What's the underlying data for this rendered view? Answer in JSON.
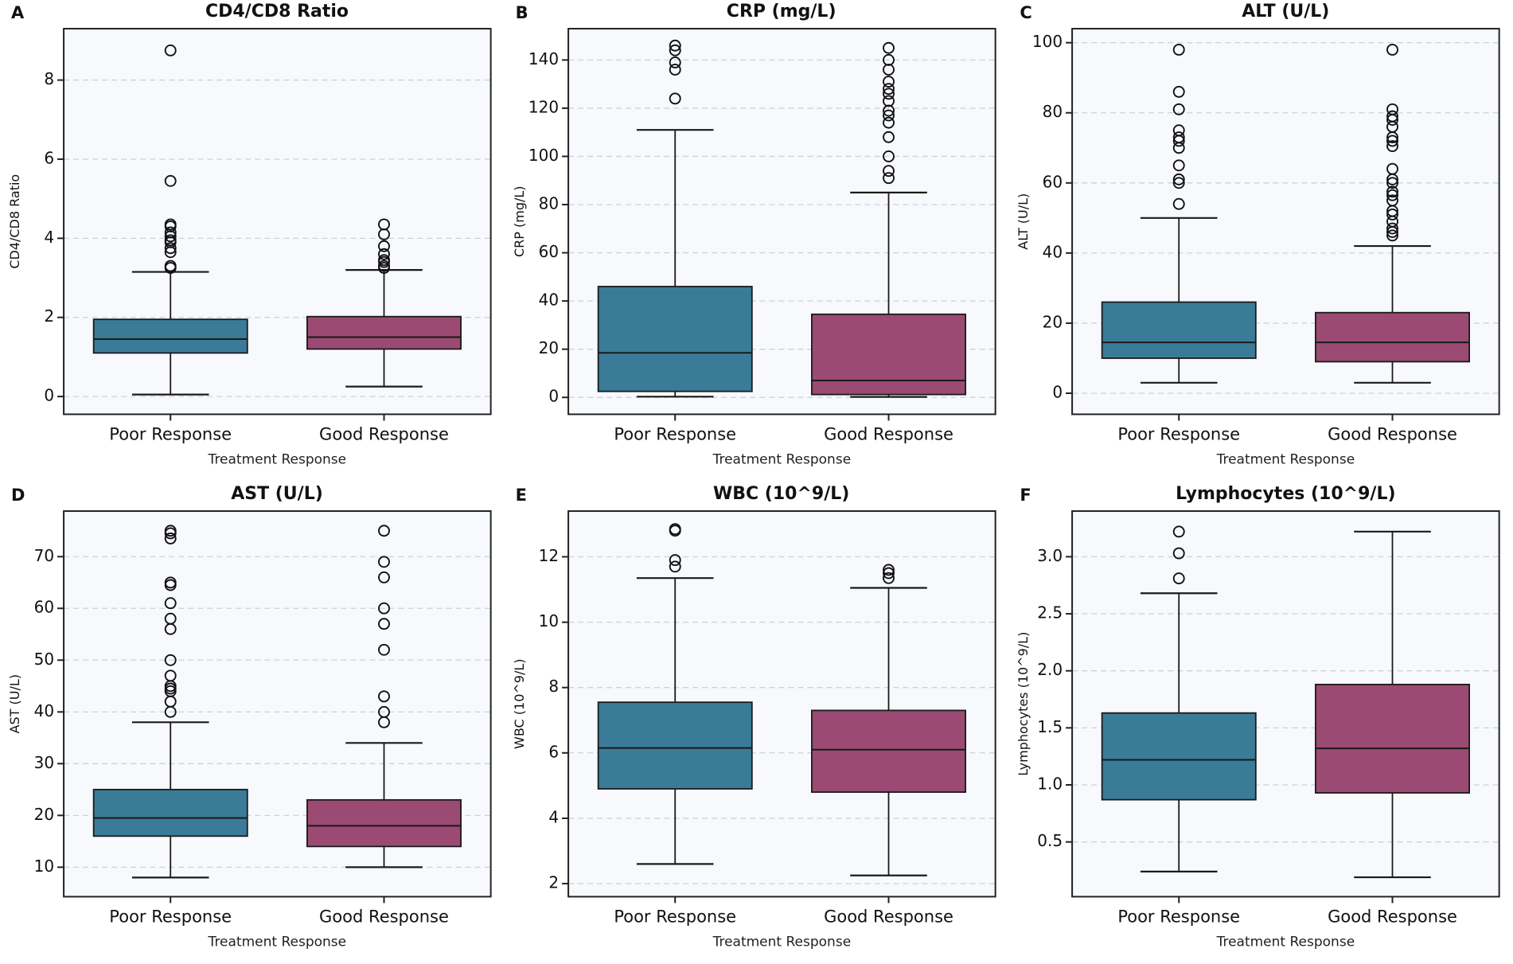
{
  "figure": {
    "xlabel": "Treatment Response",
    "categories": [
      "Poor Response",
      "Good Response"
    ],
    "colors": {
      "poor_fill": "#3a7c98",
      "good_fill": "#9b4a73",
      "box_edge": "#1a1a1a",
      "median": "#1a1a1a",
      "whisker": "#1a1a1a",
      "outlier_stroke": "#111111",
      "grid": "#cdd2d8",
      "plot_bg": "#f7f9fc",
      "spine": "#222222",
      "page_bg": "#ffffff"
    }
  },
  "chart_data": [
    {
      "panel": "A",
      "type": "box",
      "title": "CD4/CD8 Ratio",
      "ylabel": "CD4/CD8 Ratio",
      "xlabel": "Treatment Response",
      "categories": [
        "Poor Response",
        "Good Response"
      ],
      "ytick_vals": [
        0,
        2,
        4,
        6,
        8
      ],
      "ytick_labels": [
        "0",
        "2",
        "4",
        "6",
        "8"
      ],
      "ylim": [
        -0.45,
        9.3
      ],
      "grid": true,
      "series": [
        {
          "name": "Poor Response",
          "whislo": 0.05,
          "q1": 1.1,
          "med": 1.45,
          "q3": 1.95,
          "whishi": 3.15,
          "outliers": [
            3.25,
            3.3,
            3.65,
            3.75,
            3.9,
            3.95,
            4.05,
            4.15,
            4.3,
            4.35,
            5.45,
            8.75
          ]
        },
        {
          "name": "Good Response",
          "whislo": 0.25,
          "q1": 1.2,
          "med": 1.5,
          "q3": 2.02,
          "whishi": 3.2,
          "outliers": [
            3.25,
            3.3,
            3.4,
            3.45,
            3.6,
            3.8,
            4.1,
            4.35
          ]
        }
      ]
    },
    {
      "panel": "B",
      "type": "box",
      "title": "CRP (mg/L)",
      "ylabel": "CRP (mg/L)",
      "xlabel": "Treatment Response",
      "categories": [
        "Poor Response",
        "Good Response"
      ],
      "ytick_vals": [
        0,
        20,
        40,
        60,
        80,
        100,
        120,
        140
      ],
      "ytick_labels": [
        "0",
        "20",
        "40",
        "60",
        "80",
        "100",
        "120",
        "140"
      ],
      "ylim": [
        -7,
        153
      ],
      "grid": true,
      "series": [
        {
          "name": "Poor Response",
          "whislo": 0.3,
          "q1": 2.5,
          "med": 18.5,
          "q3": 46,
          "whishi": 111,
          "outliers": [
            124,
            136,
            139,
            144,
            146
          ]
        },
        {
          "name": "Good Response",
          "whislo": 0.2,
          "q1": 1.2,
          "med": 7,
          "q3": 34.5,
          "whishi": 85,
          "outliers": [
            91,
            94,
            100,
            108,
            114,
            117,
            119,
            123,
            126,
            128,
            131,
            136,
            140,
            145
          ]
        }
      ]
    },
    {
      "panel": "C",
      "type": "box",
      "title": "ALT (U/L)",
      "ylabel": "ALT (U/L)",
      "xlabel": "Treatment Response",
      "categories": [
        "Poor Response",
        "Good Response"
      ],
      "ytick_vals": [
        0,
        20,
        40,
        60,
        80,
        100
      ],
      "ytick_labels": [
        "0",
        "20",
        "40",
        "60",
        "80",
        "100"
      ],
      "ylim": [
        -6,
        104
      ],
      "grid": true,
      "series": [
        {
          "name": "Poor Response",
          "whislo": 3,
          "q1": 10,
          "med": 14.5,
          "q3": 26,
          "whishi": 50,
          "outliers": [
            54,
            60,
            61,
            65,
            70,
            72,
            73,
            75,
            81,
            86,
            98
          ]
        },
        {
          "name": "Good Response",
          "whislo": 3,
          "q1": 9,
          "med": 14.5,
          "q3": 23,
          "whishi": 42,
          "outliers": [
            45,
            46,
            47,
            49,
            51,
            52,
            55,
            56.5,
            57.5,
            60,
            61,
            64,
            70.5,
            72,
            73,
            76,
            78,
            79,
            81,
            98
          ]
        }
      ]
    },
    {
      "panel": "D",
      "type": "box",
      "title": "AST (U/L)",
      "ylabel": "AST (U/L)",
      "xlabel": "Treatment Response",
      "categories": [
        "Poor Response",
        "Good Response"
      ],
      "ytick_vals": [
        10,
        20,
        30,
        40,
        50,
        60,
        70
      ],
      "ytick_labels": [
        "10",
        "20",
        "30",
        "40",
        "50",
        "60",
        "70"
      ],
      "ylim": [
        4.3,
        78.8
      ],
      "grid": true,
      "series": [
        {
          "name": "Poor Response",
          "whislo": 8,
          "q1": 16,
          "med": 19.5,
          "q3": 25,
          "whishi": 38,
          "outliers": [
            40,
            42,
            44,
            44.5,
            45,
            47,
            50,
            56,
            58,
            61,
            64.5,
            65,
            73.5,
            74.5,
            75
          ]
        },
        {
          "name": "Good Response",
          "whislo": 10,
          "q1": 14,
          "med": 18,
          "q3": 23,
          "whishi": 34,
          "outliers": [
            38,
            40,
            43,
            52,
            57,
            60,
            66,
            69,
            75
          ]
        }
      ]
    },
    {
      "panel": "E",
      "type": "box",
      "title": "WBC (10^9/L)",
      "ylabel": "WBC (10^9/L)",
      "xlabel": "Treatment Response",
      "categories": [
        "Poor Response",
        "Good Response"
      ],
      "ytick_vals": [
        2,
        4,
        6,
        8,
        10,
        12
      ],
      "ytick_labels": [
        "2",
        "4",
        "6",
        "8",
        "10",
        "12"
      ],
      "ylim": [
        1.6,
        13.4
      ],
      "grid": true,
      "series": [
        {
          "name": "Poor Response",
          "whislo": 2.6,
          "q1": 4.9,
          "med": 6.15,
          "q3": 7.55,
          "whishi": 11.35,
          "outliers": [
            11.7,
            11.9,
            12.8,
            12.85
          ]
        },
        {
          "name": "Good Response",
          "whislo": 2.25,
          "q1": 4.8,
          "med": 6.1,
          "q3": 7.3,
          "whishi": 11.05,
          "outliers": [
            11.35,
            11.5,
            11.6
          ]
        }
      ]
    },
    {
      "panel": "F",
      "type": "box",
      "title": "Lymphocytes (10^9/L)",
      "ylabel": "Lymphocytes (10^9/L)",
      "xlabel": "Treatment Response",
      "categories": [
        "Poor Response",
        "Good Response"
      ],
      "ytick_vals": [
        0.5,
        1.0,
        1.5,
        2.0,
        2.5,
        3.0
      ],
      "ytick_labels": [
        "0.5",
        "1.0",
        "1.5",
        "2.0",
        "2.5",
        "3.0"
      ],
      "ylim": [
        0.02,
        3.4
      ],
      "grid": true,
      "series": [
        {
          "name": "Poor Response",
          "whislo": 0.24,
          "q1": 0.87,
          "med": 1.22,
          "q3": 1.63,
          "whishi": 2.68,
          "outliers": [
            2.81,
            3.03,
            3.22
          ]
        },
        {
          "name": "Good Response",
          "whislo": 0.19,
          "q1": 0.93,
          "med": 1.32,
          "q3": 1.88,
          "whishi": 3.22,
          "outliers": []
        }
      ]
    }
  ]
}
